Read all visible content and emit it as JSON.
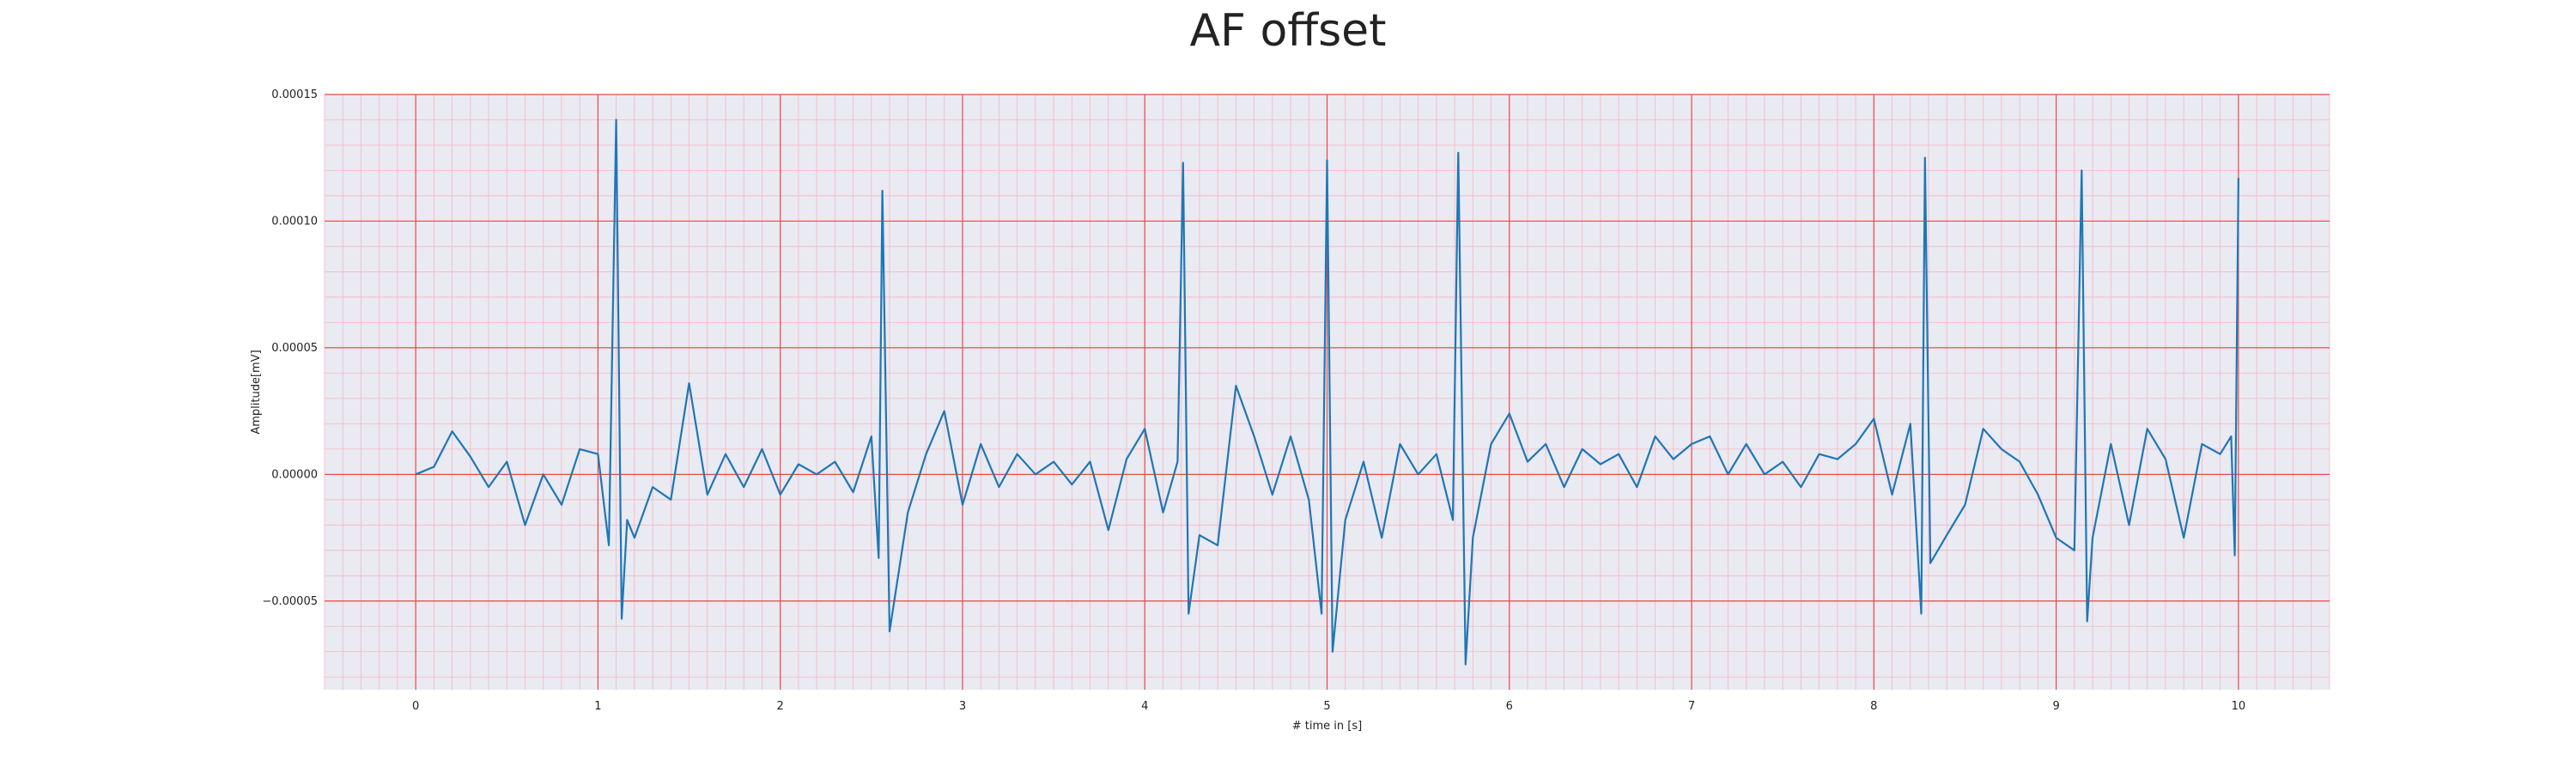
{
  "chart_data": {
    "type": "line",
    "title": "AF offset",
    "xlabel": "# time in [s]",
    "ylabel": "Amplitude[mV]",
    "xlim": [
      -0.5,
      10.5
    ],
    "ylim": [
      -8.5e-05,
      0.00015
    ],
    "xticks": [
      0,
      1,
      2,
      3,
      4,
      5,
      6,
      7,
      8,
      9,
      10
    ],
    "xtick_labels": [
      "0",
      "1",
      "2",
      "3",
      "4",
      "5",
      "6",
      "7",
      "8",
      "9",
      "10"
    ],
    "yticks": [
      0.00015,
      0.0001,
      5e-05,
      0.0,
      -5e-05
    ],
    "ytick_labels": [
      "0.00015",
      "0.00010",
      "0.00005",
      "0.00000",
      "−0.00005"
    ],
    "grid": true,
    "minor_grid": true,
    "background": "#eaeaf2",
    "major_grid_color": "#e84a4a",
    "minor_grid_color": "#f4b6c2",
    "series": [
      {
        "color": "#1f77b4",
        "x": [
          0.0,
          0.1,
          0.2,
          0.3,
          0.4,
          0.5,
          0.6,
          0.7,
          0.8,
          0.9,
          1.0,
          1.06,
          1.1,
          1.13,
          1.16,
          1.2,
          1.3,
          1.4,
          1.5,
          1.6,
          1.7,
          1.8,
          1.9,
          2.0,
          2.1,
          2.2,
          2.3,
          2.4,
          2.5,
          2.54,
          2.56,
          2.6,
          2.7,
          2.8,
          2.9,
          3.0,
          3.1,
          3.2,
          3.3,
          3.4,
          3.5,
          3.6,
          3.7,
          3.8,
          3.9,
          4.0,
          4.1,
          4.18,
          4.21,
          4.24,
          4.3,
          4.4,
          4.5,
          4.6,
          4.7,
          4.8,
          4.9,
          4.97,
          5.0,
          5.03,
          5.1,
          5.2,
          5.3,
          5.4,
          5.5,
          5.6,
          5.69,
          5.72,
          5.76,
          5.8,
          5.9,
          6.0,
          6.1,
          6.2,
          6.3,
          6.4,
          6.5,
          6.6,
          6.7,
          6.8,
          6.9,
          7.0,
          7.1,
          7.2,
          7.3,
          7.4,
          7.5,
          7.6,
          7.7,
          7.8,
          7.9,
          8.0,
          8.1,
          8.2,
          8.26,
          8.28,
          8.31,
          8.4,
          8.5,
          8.6,
          8.7,
          8.8,
          8.9,
          9.0,
          9.1,
          9.14,
          9.17,
          9.2,
          9.3,
          9.4,
          9.5,
          9.6,
          9.7,
          9.8,
          9.9,
          9.96,
          9.98,
          10.0
        ],
        "y": [
          0.0,
          3e-06,
          1.7e-05,
          7e-06,
          -5e-06,
          5e-06,
          -2e-05,
          0.0,
          -1.2e-05,
          1e-05,
          8e-06,
          -2.8e-05,
          0.00014,
          -5.7e-05,
          -1.8e-05,
          -2.5e-05,
          -5e-06,
          -1e-05,
          3.6e-05,
          -8e-06,
          8e-06,
          -5e-06,
          1e-05,
          -8e-06,
          4e-06,
          0.0,
          5e-06,
          -7e-06,
          1.5e-05,
          -3.3e-05,
          0.000112,
          -6.2e-05,
          -1.5e-05,
          8e-06,
          2.5e-05,
          -1.2e-05,
          1.2e-05,
          -5e-06,
          8e-06,
          0.0,
          5e-06,
          -4e-06,
          5e-06,
          -2.2e-05,
          6e-06,
          1.8e-05,
          -1.5e-05,
          5e-06,
          0.000123,
          -5.5e-05,
          -2.4e-05,
          -2.8e-05,
          3.5e-05,
          1.5e-05,
          -8e-06,
          1.5e-05,
          -1e-05,
          -5.5e-05,
          0.000124,
          -7e-05,
          -1.8e-05,
          5e-06,
          -2.5e-05,
          1.2e-05,
          0.0,
          8e-06,
          -1.8e-05,
          0.000127,
          -7.5e-05,
          -2.5e-05,
          1.2e-05,
          2.4e-05,
          5e-06,
          1.2e-05,
          -5e-06,
          1e-05,
          4e-06,
          8e-06,
          -5e-06,
          1.5e-05,
          6e-06,
          1.2e-05,
          1.5e-05,
          0.0,
          1.2e-05,
          0.0,
          5e-06,
          -5e-06,
          8e-06,
          6e-06,
          1.2e-05,
          2.2e-05,
          -8e-06,
          2e-05,
          -5.5e-05,
          0.000125,
          -3.5e-05,
          -2.4e-05,
          -1.2e-05,
          1.8e-05,
          1e-05,
          5e-06,
          -8e-06,
          -2.5e-05,
          -3e-05,
          0.00012,
          -5.8e-05,
          -2.5e-05,
          1.2e-05,
          -2e-05,
          1.8e-05,
          6e-06,
          -2.5e-05,
          1.2e-05,
          8e-06,
          1.5e-05,
          -3.2e-05,
          0.000117
        ]
      }
    ]
  }
}
